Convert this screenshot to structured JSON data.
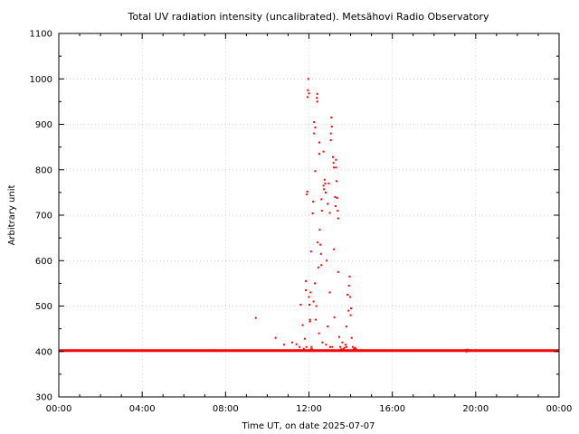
{
  "chart_data": {
    "type": "scatter",
    "title": "Total UV radiation intensity (uncalibrated). Metsähovi Radio Observatory",
    "xlabel": "Time UT, on date 2025-07-07",
    "ylabel": "Arbitrary unit",
    "xlim": [
      0,
      24
    ],
    "ylim": [
      300,
      1100
    ],
    "x_ticks": [
      "00:00",
      "04:00",
      "08:00",
      "12:00",
      "16:00",
      "20:00",
      "00:00"
    ],
    "y_ticks": [
      300,
      400,
      500,
      600,
      700,
      800,
      900,
      1000,
      1100
    ],
    "grid": true,
    "marker_color": "#ff0000",
    "baseline": {
      "value": 402,
      "from": 0,
      "to": 24
    },
    "points": [
      [
        7.4,
        403
      ],
      [
        7.55,
        401
      ],
      [
        7.7,
        402
      ],
      [
        7.8,
        401
      ],
      [
        9.45,
        474
      ],
      [
        10.0,
        402
      ],
      [
        10.4,
        430
      ],
      [
        10.8,
        415
      ],
      [
        11.2,
        420
      ],
      [
        11.4,
        416
      ],
      [
        11.55,
        410
      ],
      [
        11.6,
        503
      ],
      [
        11.7,
        458
      ],
      [
        11.75,
        406
      ],
      [
        11.8,
        428
      ],
      [
        11.85,
        535
      ],
      [
        11.85,
        555
      ],
      [
        11.88,
        410
      ],
      [
        11.9,
        746
      ],
      [
        11.92,
        752
      ],
      [
        11.93,
        960
      ],
      [
        11.95,
        975
      ],
      [
        11.97,
        1000
      ],
      [
        12.0,
        968
      ],
      [
        12.0,
        520
      ],
      [
        12.02,
        503
      ],
      [
        12.05,
        470
      ],
      [
        12.05,
        466
      ],
      [
        12.08,
        530
      ],
      [
        12.1,
        405
      ],
      [
        12.1,
        620
      ],
      [
        12.12,
        410
      ],
      [
        12.15,
        405
      ],
      [
        12.18,
        704
      ],
      [
        12.2,
        730
      ],
      [
        12.22,
        510
      ],
      [
        12.25,
        880
      ],
      [
        12.25,
        905
      ],
      [
        12.28,
        550
      ],
      [
        12.3,
        893
      ],
      [
        12.3,
        797
      ],
      [
        12.33,
        470
      ],
      [
        12.35,
        500
      ],
      [
        12.38,
        958
      ],
      [
        12.4,
        950
      ],
      [
        12.4,
        967
      ],
      [
        12.42,
        640
      ],
      [
        12.45,
        585
      ],
      [
        12.48,
        440
      ],
      [
        12.5,
        835
      ],
      [
        12.5,
        860
      ],
      [
        12.52,
        668
      ],
      [
        12.55,
        635
      ],
      [
        12.58,
        615
      ],
      [
        12.6,
        590
      ],
      [
        12.6,
        735
      ],
      [
        12.62,
        710
      ],
      [
        12.65,
        420
      ],
      [
        12.7,
        840
      ],
      [
        12.7,
        765
      ],
      [
        12.72,
        757
      ],
      [
        12.75,
        778
      ],
      [
        12.78,
        770
      ],
      [
        12.8,
        750
      ],
      [
        12.82,
        415
      ],
      [
        12.85,
        600
      ],
      [
        12.9,
        455
      ],
      [
        12.9,
        725
      ],
      [
        12.95,
        770
      ],
      [
        13.0,
        530
      ],
      [
        13.0,
        705
      ],
      [
        13.02,
        410
      ],
      [
        13.05,
        865
      ],
      [
        13.05,
        880
      ],
      [
        13.08,
        915
      ],
      [
        13.1,
        895
      ],
      [
        13.12,
        410
      ],
      [
        13.15,
        828
      ],
      [
        13.18,
        815
      ],
      [
        13.2,
        805
      ],
      [
        13.2,
        625
      ],
      [
        13.22,
        475
      ],
      [
        13.25,
        740
      ],
      [
        13.28,
        720
      ],
      [
        13.3,
        805
      ],
      [
        13.3,
        822
      ],
      [
        13.32,
        775
      ],
      [
        13.35,
        738
      ],
      [
        13.38,
        710
      ],
      [
        13.4,
        693
      ],
      [
        13.4,
        575
      ],
      [
        13.45,
        432
      ],
      [
        13.5,
        410
      ],
      [
        13.55,
        405
      ],
      [
        13.6,
        420
      ],
      [
        13.65,
        405
      ],
      [
        13.7,
        408
      ],
      [
        13.75,
        415
      ],
      [
        13.8,
        410
      ],
      [
        13.8,
        455
      ],
      [
        13.85,
        525
      ],
      [
        13.9,
        490
      ],
      [
        13.92,
        545
      ],
      [
        13.95,
        565
      ],
      [
        13.98,
        520
      ],
      [
        14.0,
        480
      ],
      [
        14.02,
        495
      ],
      [
        14.05,
        430
      ],
      [
        14.1,
        410
      ],
      [
        14.15,
        405
      ],
      [
        14.2,
        408
      ],
      [
        14.25,
        406
      ],
      [
        14.3,
        403
      ],
      [
        14.35,
        402
      ],
      [
        14.5,
        403
      ],
      [
        19.5,
        403
      ],
      [
        19.55,
        400
      ],
      [
        19.6,
        404
      ],
      [
        19.65,
        401
      ],
      [
        19.7,
        402
      ]
    ]
  }
}
